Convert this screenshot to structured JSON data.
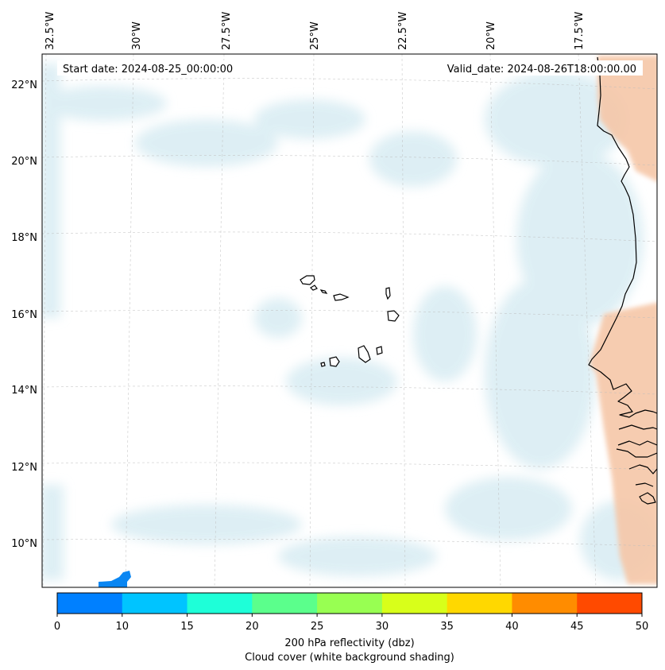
{
  "map": {
    "start_label": "Start date: 2024-08-25_00:00:00",
    "valid_label": "Valid_date: 2024-08-26T18:00:00.00",
    "lon_labels": [
      "32.5°W",
      "30°W",
      "27.5°W",
      "25°W",
      "22.5°W",
      "20°W",
      "17.5°W"
    ],
    "lat_labels": [
      "22°N",
      "20°N",
      "18°N",
      "16°N",
      "14°N",
      "12°N",
      "10°N"
    ],
    "colors": {
      "cloud": "#d8ecf3",
      "warm": "#f6c7a8",
      "reflectivity_cell": "#0a86f2",
      "frame": "#000000"
    }
  },
  "colorbar": {
    "ticks": [
      "0",
      "10",
      "15",
      "20",
      "25",
      "30",
      "35",
      "40",
      "45",
      "50"
    ],
    "colors": [
      "#0080ff",
      "#00c4ff",
      "#1effd8",
      "#5bff8c",
      "#98ff52",
      "#d8ff1a",
      "#ffd800",
      "#ff8c00",
      "#ff4a00"
    ],
    "label_line1": "200 hPa reflectivity (dbz)",
    "label_line2": "Cloud cover (white background shading)"
  }
}
